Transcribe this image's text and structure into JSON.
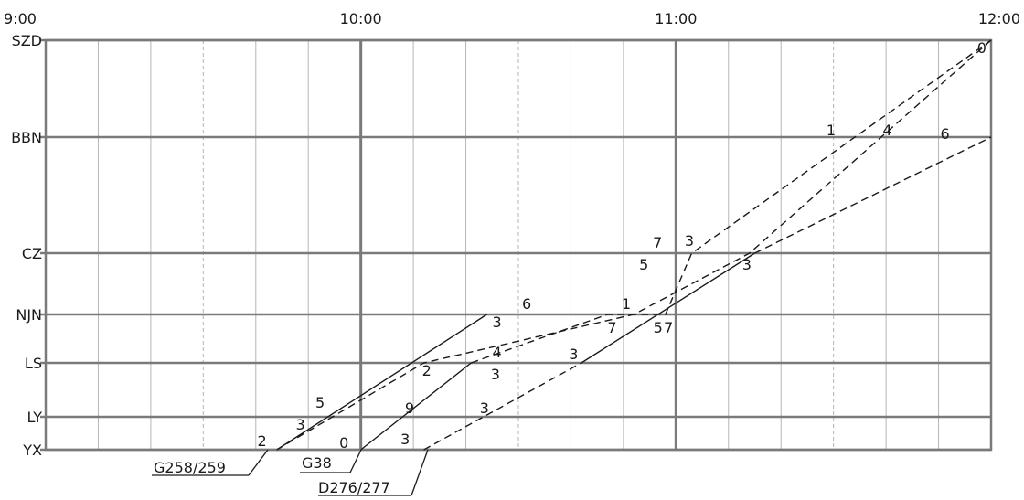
{
  "time_labels": [
    "9:00",
    "10:00",
    "11:00",
    "12:00"
  ],
  "stations": [
    {
      "code": "SZD"
    },
    {
      "code": "BBN"
    },
    {
      "code": "CZ"
    },
    {
      "code": "NJN"
    },
    {
      "code": "LS"
    },
    {
      "code": "LY"
    },
    {
      "code": "YX"
    }
  ],
  "trains": [
    {
      "name": "G258/259",
      "segments": [
        {
          "style": "solid",
          "points": [
            [
              "09:44",
              "YX"
            ],
            [
              "10:24",
              "NJN"
            ]
          ]
        },
        {
          "style": "dashed",
          "points": [
            [
              "09:44",
              "YX"
            ],
            [
              "10:12",
              "LS"
            ],
            [
              "10:52",
              "NJN"
            ],
            [
              "11:14",
              "CZ"
            ],
            [
              "12:00",
              "SZD"
            ]
          ]
        }
      ]
    },
    {
      "name": "G38",
      "segments": [
        {
          "style": "solid",
          "points": [
            [
              "10:00",
              "YX"
            ],
            [
              "10:21",
              "LS"
            ]
          ]
        },
        {
          "style": "dashed",
          "points": [
            [
              "10:21",
              "LS"
            ],
            [
              "10:47",
              "NJN"
            ],
            [
              "10:58",
              "NJN"
            ],
            [
              "11:03",
              "CZ"
            ],
            [
              "12:00",
              "SZD"
            ]
          ]
        }
      ]
    },
    {
      "name": "D276/277",
      "segments": [
        {
          "style": "dashed",
          "points": [
            [
              "10:12",
              "YX"
            ],
            [
              "10:42",
              "LS"
            ]
          ]
        },
        {
          "style": "solid",
          "points": [
            [
              "10:42",
              "LS"
            ],
            [
              "11:15",
              "CZ"
            ]
          ]
        },
        {
          "style": "dashed",
          "points": [
            [
              "11:15",
              "CZ"
            ],
            [
              "12:00",
              "BBN"
            ]
          ]
        }
      ]
    }
  ],
  "minute_labels": [
    {
      "text": "2",
      "at": [
        "09:41",
        "YX"
      ]
    },
    {
      "text": "3",
      "at": [
        "09:49",
        "LY"
      ]
    },
    {
      "text": "5",
      "at": [
        "09:51",
        "LY"
      ]
    },
    {
      "text": "0",
      "at": [
        "09:58",
        "YX"
      ]
    },
    {
      "text": "9",
      "at": [
        "10:07",
        "LY"
      ]
    },
    {
      "text": "2",
      "at": [
        "10:12",
        "LS"
      ]
    },
    {
      "text": "3",
      "at": [
        "10:24",
        "NJN"
      ]
    },
    {
      "text": "6",
      "at": [
        "10:30",
        "NJN"
      ]
    },
    {
      "text": "4",
      "at": [
        "10:24",
        "LS"
      ]
    },
    {
      "text": "3",
      "at": [
        "10:23",
        "LS"
      ]
    },
    {
      "text": "3",
      "at": [
        "10:23",
        "LY"
      ]
    },
    {
      "text": "3",
      "at": [
        "10:10",
        "YX"
      ]
    },
    {
      "text": "3",
      "at": [
        "10:41",
        "LS"
      ]
    },
    {
      "text": "1",
      "at": [
        "10:50",
        "NJN"
      ]
    },
    {
      "text": "7",
      "at": [
        "10:48",
        "NJN"
      ]
    },
    {
      "text": "5",
      "at": [
        "10:55",
        "NJN"
      ]
    },
    {
      "text": "7",
      "at": [
        "10:57",
        "NJN"
      ]
    },
    {
      "text": "5",
      "at": [
        "10:53",
        "CZ"
      ]
    },
    {
      "text": "7",
      "at": [
        "10:57",
        "CZ"
      ]
    },
    {
      "text": "3",
      "at": [
        "11:02",
        "CZ"
      ]
    },
    {
      "text": "3",
      "at": [
        "11:14",
        "CZ"
      ]
    },
    {
      "text": "1",
      "at": [
        "11:29",
        "BBN"
      ]
    },
    {
      "text": "4",
      "at": [
        "11:39",
        "BBN"
      ]
    },
    {
      "text": "6",
      "at": [
        "11:50",
        "BBN"
      ]
    },
    {
      "text": "0",
      "at": [
        "11:57",
        "SZD"
      ]
    }
  ]
}
